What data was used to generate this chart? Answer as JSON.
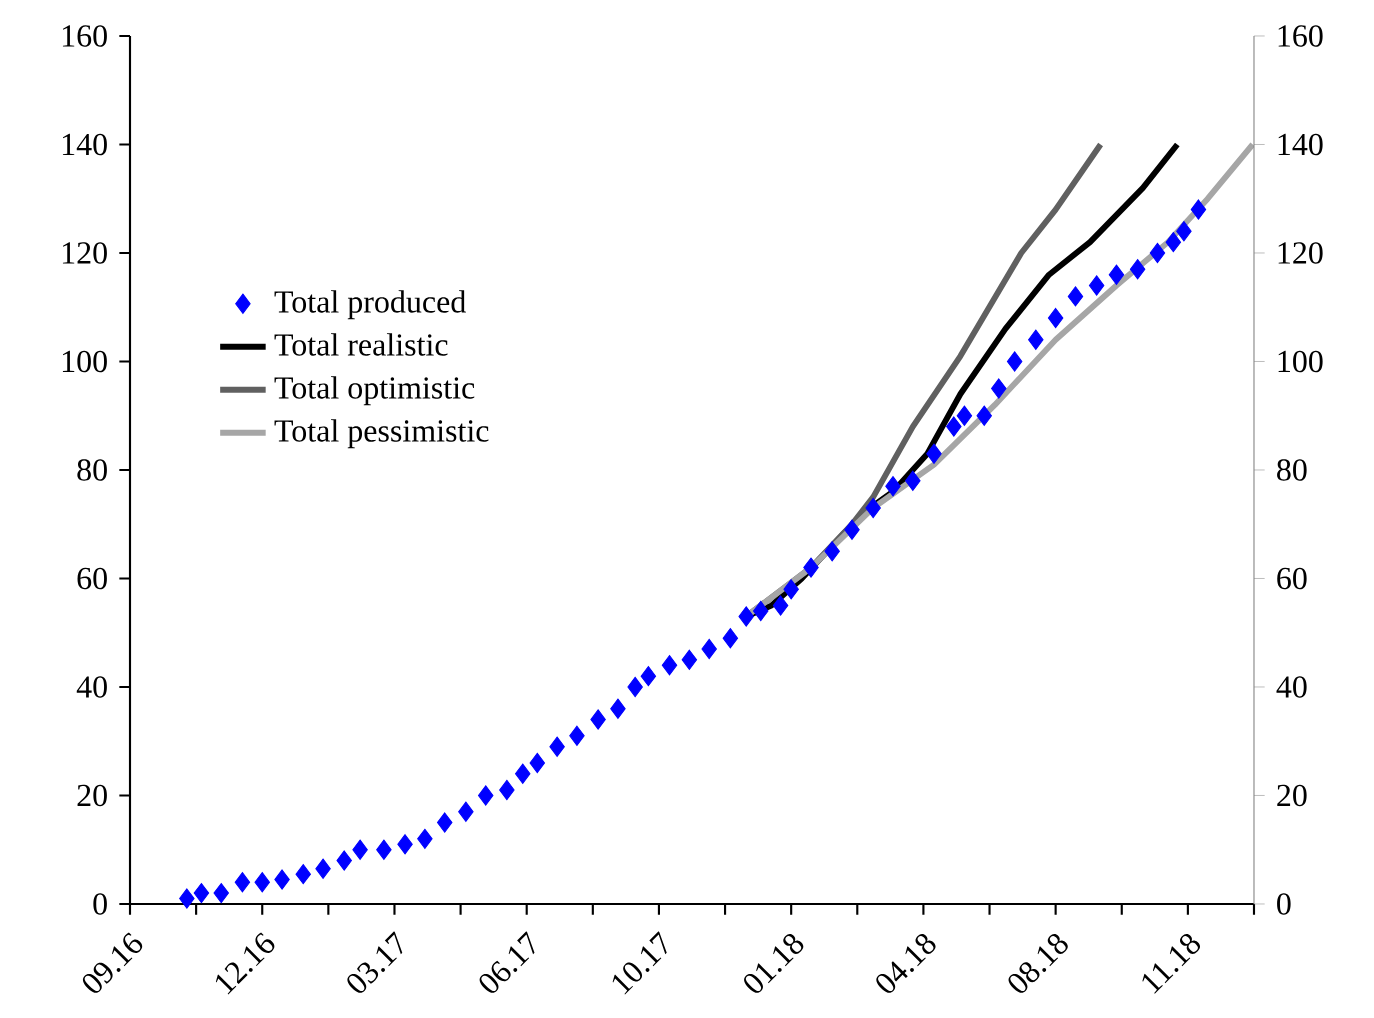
{
  "chart_data": {
    "type": "line",
    "xlim": [
      "2016-09-01",
      "2018-12-30"
    ],
    "xticks": [
      {
        "value": "2016-09-01",
        "label": "09.16"
      },
      {
        "value": "2016-10-21",
        "label": null
      },
      {
        "value": "2016-12-10",
        "label": "12.16"
      },
      {
        "value": "2017-01-29",
        "label": null
      },
      {
        "value": "2017-03-20",
        "label": "03.17"
      },
      {
        "value": "2017-05-09",
        "label": null
      },
      {
        "value": "2017-06-28",
        "label": "06.17"
      },
      {
        "value": "2017-08-17",
        "label": null
      },
      {
        "value": "2017-10-06",
        "label": "10.17"
      },
      {
        "value": "2017-11-25",
        "label": null
      },
      {
        "value": "2018-01-14",
        "label": "01.18"
      },
      {
        "value": "2018-03-05",
        "label": null
      },
      {
        "value": "2018-04-24",
        "label": "04.18"
      },
      {
        "value": "2018-06-13",
        "label": null
      },
      {
        "value": "2018-08-02",
        "label": "08.18"
      },
      {
        "value": "2018-09-21",
        "label": null
      },
      {
        "value": "2018-11-10",
        "label": "11.18"
      },
      {
        "value": "2018-12-30",
        "label": null
      }
    ],
    "ylim": [
      0,
      160
    ],
    "yticks": [
      0,
      20,
      40,
      60,
      80,
      100,
      120,
      140,
      160
    ],
    "y2lim": [
      0,
      160
    ],
    "y2ticks": [
      0,
      20,
      40,
      60,
      80,
      100,
      120,
      140,
      160
    ],
    "legend": "left",
    "grid": false,
    "series": [
      {
        "name": "Total produced",
        "type": "scatter",
        "marker": "diamond",
        "color": "#0000ff",
        "x": [
          "2016-10-14",
          "2016-10-25",
          "2016-11-09",
          "2016-11-25",
          "2016-12-10",
          "2016-12-25",
          "2017-01-10",
          "2017-01-25",
          "2017-02-10",
          "2017-02-22",
          "2017-03-12",
          "2017-03-28",
          "2017-04-12",
          "2017-04-27",
          "2017-05-13",
          "2017-05-28",
          "2017-06-13",
          "2017-06-25",
          "2017-07-06",
          "2017-07-21",
          "2017-08-05",
          "2017-08-21",
          "2017-09-05",
          "2017-09-18",
          "2017-09-28",
          "2017-10-14",
          "2017-10-29",
          "2017-11-13",
          "2017-11-29",
          "2017-12-11",
          "2017-12-22",
          "2018-01-06",
          "2018-01-14",
          "2018-01-29",
          "2018-02-14",
          "2018-03-01",
          "2018-03-17",
          "2018-04-01",
          "2018-04-16",
          "2018-05-02",
          "2018-05-17",
          "2018-05-25",
          "2018-06-09",
          "2018-06-20",
          "2018-07-02",
          "2018-07-18",
          "2018-08-02",
          "2018-08-17",
          "2018-09-02",
          "2018-09-17",
          "2018-10-03",
          "2018-10-18",
          "2018-10-30",
          "2018-11-07",
          "2018-11-18"
        ],
        "values": [
          1,
          2,
          2,
          4,
          4,
          4.5,
          5.5,
          6.5,
          8,
          10,
          10,
          11,
          12,
          15,
          17,
          20,
          21,
          24,
          26,
          29,
          31,
          34,
          36,
          40,
          42,
          44,
          45,
          47,
          49,
          53,
          54,
          55,
          58,
          62,
          65,
          69,
          73,
          77,
          78,
          83,
          88,
          90,
          90,
          95,
          100,
          104,
          108,
          112,
          114,
          116,
          117,
          120,
          122,
          124,
          128
        ]
      },
      {
        "name": "Total realistic",
        "color": "#000000",
        "x": [
          "2017-12-11",
          "2017-12-30",
          "2018-01-22",
          "2018-02-14",
          "2018-03-09",
          "2018-04-01",
          "2018-04-27",
          "2018-05-22",
          "2018-06-25",
          "2018-07-28",
          "2018-08-28",
          "2018-10-07",
          "2018-11-02"
        ],
        "values": [
          53,
          55,
          60,
          66,
          72,
          76,
          83,
          94,
          106,
          116,
          122,
          132,
          140
        ]
      },
      {
        "name": "Total optimistic",
        "color": "#606060",
        "x": [
          "2017-12-11",
          "2018-01-29",
          "2018-03-01",
          "2018-03-17",
          "2018-04-16",
          "2018-05-22",
          "2018-07-07",
          "2018-08-02",
          "2018-09-05"
        ],
        "values": [
          53,
          62,
          70,
          75,
          88,
          101,
          120,
          128,
          140
        ]
      },
      {
        "name": "Total pessimistic",
        "color": "#a6a6a6",
        "x": [
          "2017-12-11",
          "2018-01-29",
          "2018-03-17",
          "2018-05-02",
          "2018-06-17",
          "2018-08-02",
          "2018-09-17",
          "2018-10-26",
          "2018-11-25",
          "2018-12-29"
        ],
        "values": [
          53,
          62,
          73,
          81,
          92,
          104,
          114,
          122,
          130,
          140
        ]
      }
    ]
  }
}
